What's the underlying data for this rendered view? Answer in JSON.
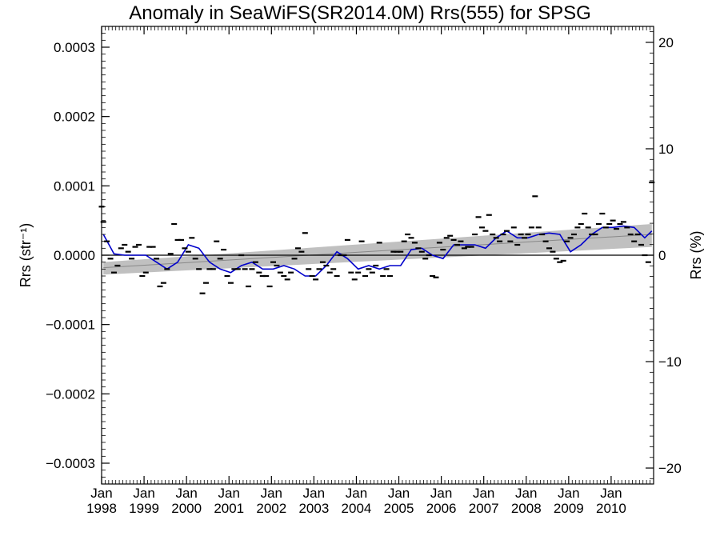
{
  "chart_data": {
    "type": "scatter",
    "title": "Anomaly in SeaWiFS(SR2014.0M) Rrs(555) for SPSG",
    "ylabel": "Rrs (str⁻¹)",
    "y2label": "Rrs (%)",
    "xlim": [
      "1998-01",
      "2010-12"
    ],
    "ylim": [
      -0.00033,
      0.00033
    ],
    "y2lim": [
      -21.5,
      21.5
    ],
    "y_ticks": [
      -0.0003,
      -0.0002,
      -0.0001,
      0.0,
      0.0001,
      0.0002,
      0.0003
    ],
    "y_tick_labels": [
      "−0.0003",
      "−0.0002",
      "−0.0001",
      "0.0000",
      "0.0001",
      "0.0002",
      "0.0003"
    ],
    "y2_ticks": [
      -20,
      -10,
      0,
      10,
      20
    ],
    "y2_tick_labels": [
      "−20",
      "−10",
      "0",
      "10",
      "20"
    ],
    "x_ticks": [
      {
        "top": "Jan",
        "bottom": "1998",
        "date": "1998-01"
      },
      {
        "top": "Jan",
        "bottom": "1999",
        "date": "1999-01"
      },
      {
        "top": "Jan",
        "bottom": "2000",
        "date": "2000-01"
      },
      {
        "top": "Jan",
        "bottom": "2001",
        "date": "2001-01"
      },
      {
        "top": "Jan",
        "bottom": "2002",
        "date": "2002-01"
      },
      {
        "top": "Jan",
        "bottom": "2003",
        "date": "2003-01"
      },
      {
        "top": "Jan",
        "bottom": "2004",
        "date": "2004-01"
      },
      {
        "top": "Jan",
        "bottom": "2005",
        "date": "2005-01"
      },
      {
        "top": "Jan",
        "bottom": "2006",
        "date": "2006-01"
      },
      {
        "top": "Jan",
        "bottom": "2007",
        "date": "2007-01"
      },
      {
        "top": "Jan",
        "bottom": "2008",
        "date": "2008-01"
      },
      {
        "top": "Jan",
        "bottom": "2009",
        "date": "2009-01"
      },
      {
        "top": "Jan",
        "bottom": "2010",
        "date": "2010-01"
      }
    ],
    "zero_line": 0.0,
    "colors": {
      "points": "#000000",
      "smoothed": "#0000cc",
      "trend_band": "#c0c0c0",
      "axes": "#000000"
    },
    "series": [
      {
        "type": "scatter",
        "x": [
          "1997-12",
          "1998-01",
          "1998-02",
          "1998-03",
          "1998-04",
          "1998-05",
          "1998-06",
          "1998-07",
          "1998-08",
          "1998-09",
          "1998-10",
          "1998-11",
          "1998-12",
          "1999-01",
          "1999-02",
          "1999-03",
          "1999-04",
          "1999-05",
          "1999-06",
          "1999-07",
          "1999-08",
          "1999-09",
          "1999-10",
          "1999-11",
          "1999-12",
          "2000-01",
          "2000-02",
          "2000-03",
          "2000-04",
          "2000-05",
          "2000-06",
          "2000-07",
          "2000-08",
          "2000-09",
          "2000-10",
          "2000-11",
          "2000-12",
          "2001-01",
          "2001-02",
          "2001-03",
          "2001-04",
          "2001-05",
          "2001-06",
          "2001-07",
          "2001-08",
          "2001-09",
          "2001-10",
          "2001-11",
          "2001-12",
          "2002-01",
          "2002-02",
          "2002-03",
          "2002-04",
          "2002-05",
          "2002-06",
          "2002-07",
          "2002-08",
          "2002-09",
          "2002-10",
          "2002-11",
          "2002-12",
          "2003-01",
          "2003-02",
          "2003-03",
          "2003-04",
          "2003-05",
          "2003-06",
          "2003-07",
          "2003-08",
          "2003-09",
          "2003-10",
          "2003-11",
          "2003-12",
          "2004-01",
          "2004-02",
          "2004-03",
          "2004-04",
          "2004-05",
          "2004-06",
          "2004-07",
          "2004-08",
          "2004-09",
          "2004-10",
          "2004-11",
          "2004-12",
          "2005-01",
          "2005-02",
          "2005-03",
          "2005-04",
          "2005-05",
          "2005-06",
          "2005-07",
          "2005-08",
          "2005-09",
          "2005-10",
          "2005-11",
          "2005-12",
          "2006-01",
          "2006-02",
          "2006-03",
          "2006-04",
          "2006-05",
          "2006-06",
          "2006-07",
          "2006-08",
          "2006-09",
          "2006-10",
          "2006-11",
          "2006-12",
          "2007-01",
          "2007-02",
          "2007-03",
          "2007-04",
          "2007-05",
          "2007-06",
          "2007-07",
          "2007-08",
          "2007-09",
          "2007-10",
          "2007-11",
          "2007-12",
          "2008-01",
          "2008-02",
          "2008-03",
          "2008-04",
          "2008-05",
          "2008-06",
          "2008-07",
          "2008-08",
          "2008-09",
          "2008-10",
          "2008-11",
          "2008-12",
          "2009-01",
          "2009-02",
          "2009-03",
          "2009-04",
          "2009-05",
          "2009-06",
          "2009-07",
          "2009-08",
          "2009-09",
          "2009-10",
          "2009-11",
          "2009-12",
          "2010-01",
          "2010-02",
          "2010-03",
          "2010-04",
          "2010-05",
          "2010-06",
          "2010-07",
          "2010-08",
          "2010-09",
          "2010-10",
          "2010-11",
          "2010-12"
        ],
        "y": [
          7e-05,
          4.8e-05,
          2e-05,
          -5e-06,
          -2.5e-05,
          -1.5e-05,
          1e-05,
          1.5e-05,
          5e-06,
          -5e-06,
          1.2e-05,
          1.5e-05,
          -3e-05,
          -2.5e-05,
          1.2e-05,
          1.2e-05,
          -5e-06,
          -4.5e-05,
          -4e-05,
          -2e-05,
          2e-06,
          4.5e-05,
          2.2e-05,
          2.2e-05,
          1e-05,
          5e-06,
          2.5e-05,
          -5e-06,
          -2e-05,
          -5.5e-05,
          -4e-05,
          -2e-05,
          -2e-05,
          2e-05,
          -5e-06,
          8e-06,
          -3e-05,
          -4e-05,
          -2e-05,
          -2e-05,
          0.0,
          -2e-05,
          -4.5e-05,
          -2e-05,
          -1e-05,
          -2.5e-05,
          -3e-05,
          -3e-05,
          -4.5e-05,
          -1e-05,
          -1.5e-05,
          -2.5e-05,
          -3e-05,
          -3.5e-05,
          -2.5e-05,
          -5e-06,
          1e-05,
          5e-06,
          3.2e-05,
          -2e-05,
          -3e-05,
          -3.5e-05,
          -2e-05,
          -1e-05,
          -1.5e-05,
          -2.5e-05,
          -2e-05,
          -3e-05,
          0.0,
          0.0,
          2.2e-05,
          -2.5e-05,
          -3.5e-05,
          -2.5e-05,
          2e-05,
          -3e-05,
          -2e-05,
          -2.5e-05,
          -1.5e-05,
          1.8e-05,
          -3e-05,
          -2e-05,
          -3e-05,
          5e-06,
          5e-06,
          5e-06,
          2e-05,
          3e-05,
          2.5e-05,
          1.8e-05,
          1e-05,
          5e-06,
          -5e-06,
          0.0,
          -3e-05,
          -3.2e-05,
          1.8e-05,
          8e-06,
          2.5e-05,
          2.8e-05,
          2.2e-05,
          1.5e-05,
          2e-05,
          1e-05,
          1.2e-05,
          1.2e-05,
          3e-05,
          5.5e-05,
          4e-05,
          3.5e-05,
          5.8e-05,
          3e-05,
          2.5e-05,
          2e-05,
          3e-05,
          3.5e-05,
          2e-05,
          4e-05,
          1.5e-05,
          3e-05,
          2.5e-05,
          3e-05,
          4e-05,
          8.5e-05,
          4e-05,
          3e-05,
          2e-05,
          1e-05,
          5e-06,
          -5e-06,
          -1e-05,
          -8e-06,
          2e-05,
          2.5e-05,
          3e-05,
          4e-05,
          4.5e-05,
          6e-05,
          4e-05,
          3e-05,
          3e-05,
          4.5e-05,
          6e-05,
          4e-05,
          4.5e-05,
          5e-05,
          3.8e-05,
          4.5e-05,
          4.8e-05,
          4e-05,
          3e-05,
          2e-05,
          3e-05,
          1.5e-05,
          0.0,
          -1e-05,
          0.000105
        ]
      },
      {
        "type": "line",
        "x": [
          "1998-01",
          "1998-04",
          "1998-07",
          "1998-10",
          "1999-01",
          "1999-04",
          "1999-07",
          "1999-10",
          "2000-01",
          "2000-04",
          "2000-07",
          "2000-10",
          "2001-01",
          "2001-04",
          "2001-07",
          "2001-10",
          "2002-01",
          "2002-04",
          "2002-07",
          "2002-10",
          "2003-01",
          "2003-04",
          "2003-07",
          "2003-10",
          "2004-01",
          "2004-04",
          "2004-07",
          "2004-10",
          "2005-01",
          "2005-04",
          "2005-07",
          "2005-10",
          "2006-01",
          "2006-04",
          "2006-07",
          "2006-10",
          "2007-01",
          "2007-04",
          "2007-07",
          "2007-10",
          "2008-01",
          "2008-04",
          "2008-07",
          "2008-10",
          "2009-01",
          "2009-04",
          "2009-07",
          "2009-10",
          "2010-01",
          "2010-04",
          "2010-07",
          "2010-10",
          "2010-12"
        ],
        "y": [
          3e-05,
          2e-06,
          0.0,
          0.0,
          0.0,
          -1e-05,
          -2e-05,
          -1e-05,
          1.5e-05,
          1e-05,
          -1e-05,
          -2e-05,
          -2.5e-05,
          -1.5e-05,
          -1e-05,
          -2e-05,
          -2e-05,
          -1.5e-05,
          -2e-05,
          -3e-05,
          -3e-05,
          -1.5e-05,
          5e-06,
          -5e-06,
          -2e-05,
          -1.5e-05,
          -2e-05,
          -1.5e-05,
          -1.5e-05,
          8e-06,
          1e-05,
          0.0,
          -5e-06,
          1.5e-05,
          1.5e-05,
          1.5e-05,
          1e-05,
          2.5e-05,
          3.5e-05,
          2.5e-05,
          2.5e-05,
          3e-05,
          3.2e-05,
          3e-05,
          5e-06,
          1.5e-05,
          3e-05,
          4e-05,
          4e-05,
          4.2e-05,
          4e-05,
          2.5e-05,
          3.5e-05
        ]
      },
      {
        "type": "band",
        "x": [
          "1998-01",
          "2010-12"
        ],
        "y_low": [
          -2.8e-05,
          1.2e-05
        ],
        "y_high": [
          -1e-05,
          4.5e-05
        ],
        "center": [
          -1.8e-05,
          3e-05
        ]
      }
    ]
  }
}
